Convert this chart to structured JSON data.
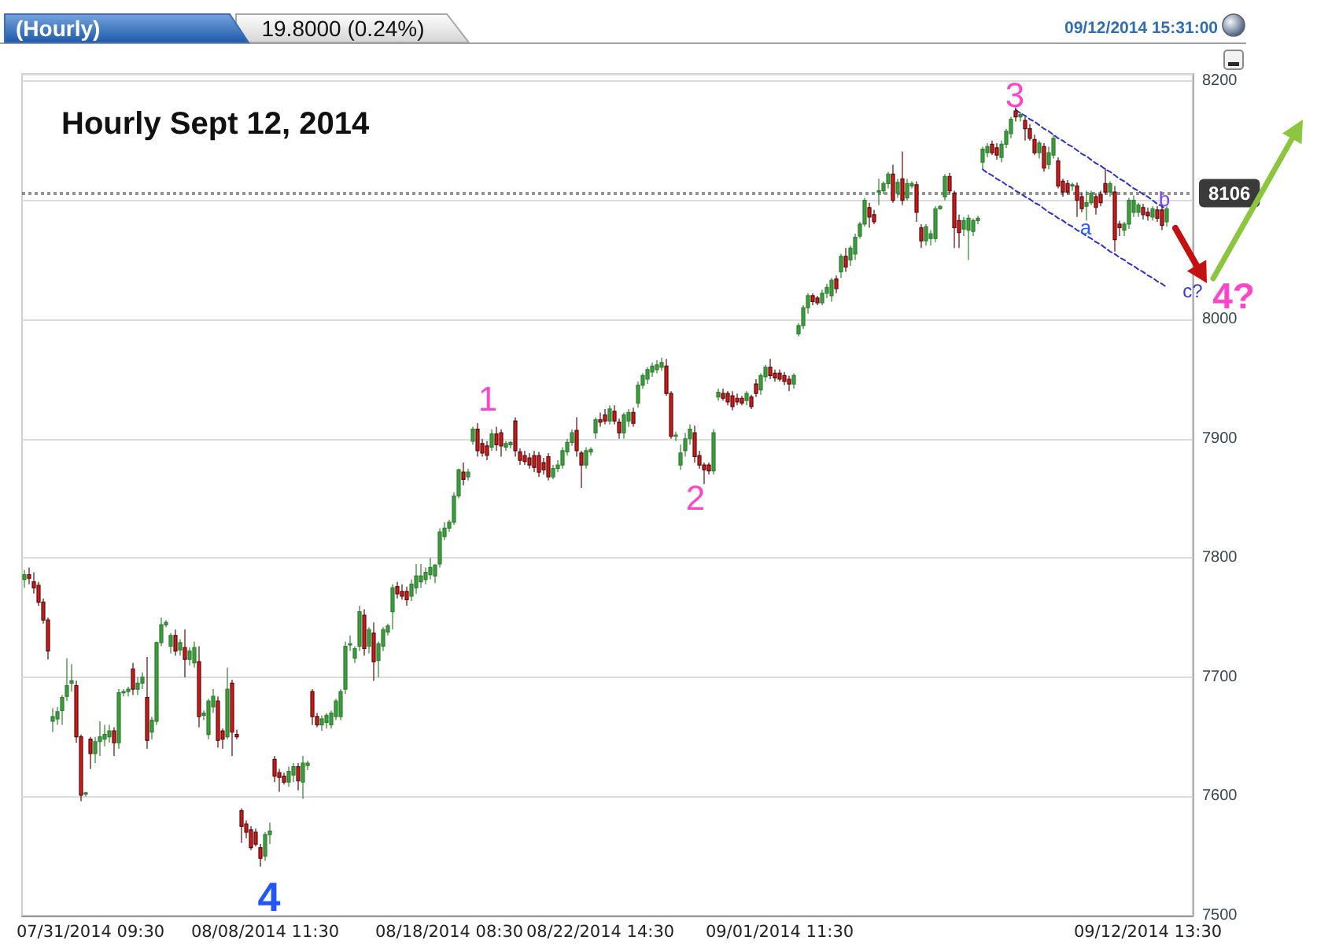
{
  "chart_data": {
    "type": "candlestick",
    "title": "Hourly Sept 12, 2014",
    "categories": [
      null,
      null,
      null,
      null,
      null,
      null,
      null,
      null,
      null,
      null,
      null,
      null,
      null,
      null,
      "07/31/2014 09:30",
      null,
      null,
      null,
      null,
      null,
      null,
      null,
      null,
      null,
      null,
      null,
      null,
      null,
      null,
      null,
      null,
      null,
      null,
      null,
      null,
      null,
      null,
      null,
      null,
      null,
      null,
      null,
      null,
      null,
      null,
      null,
      null,
      null,
      null,
      null,
      null,
      "08/08/2014 11:30",
      null,
      null,
      null,
      null,
      null,
      null,
      null,
      null,
      null,
      null,
      null,
      null,
      null,
      null,
      null,
      null,
      null,
      null,
      null,
      null,
      null,
      null,
      null,
      null,
      null,
      null,
      null,
      null,
      null,
      null,
      null,
      null,
      null,
      null,
      null,
      null,
      null,
      null,
      "08/18/2014 08:30",
      null,
      null,
      null,
      null,
      null,
      null,
      null,
      null,
      null,
      null,
      null,
      null,
      null,
      null,
      null,
      null,
      null,
      null,
      null,
      null,
      null,
      null,
      null,
      null,
      null,
      null,
      null,
      null,
      null,
      null,
      null,
      "08/22/2014 14:30",
      null,
      null,
      null,
      null,
      null,
      null,
      null,
      null,
      null,
      null,
      null,
      null,
      null,
      null,
      null,
      null,
      null,
      null,
      null,
      null,
      null,
      null,
      null,
      null,
      null,
      null,
      null,
      null,
      null,
      null,
      null,
      null,
      null,
      null,
      null,
      null,
      null,
      "09/01/2014 11:30",
      null,
      null,
      null,
      null,
      null,
      null,
      null,
      null,
      null,
      null,
      null,
      null,
      null,
      null,
      null,
      null,
      null,
      null,
      null,
      null,
      null,
      null,
      null,
      null,
      null,
      null,
      null,
      null,
      null,
      null,
      null,
      null,
      null,
      null,
      null,
      null,
      null,
      null,
      null,
      null,
      null,
      null,
      null,
      null,
      null,
      null,
      null,
      null,
      null,
      null,
      null,
      null,
      null,
      null,
      null,
      null,
      null,
      null,
      null,
      null,
      null,
      null,
      null,
      null,
      null,
      null,
      null,
      null,
      null,
      null,
      null,
      null,
      null,
      null,
      null,
      null,
      null,
      "09/12/2014 13:30",
      null,
      null,
      null,
      null
    ],
    "ohlc": [
      [
        7782,
        7790,
        7775,
        7786
      ],
      [
        7786,
        7792,
        7778,
        7783
      ],
      [
        7780,
        7788,
        7770,
        7775
      ],
      [
        7777,
        7780,
        7760,
        7763
      ],
      [
        7763,
        7766,
        7745,
        7748
      ],
      [
        7748,
        7750,
        7715,
        7722
      ],
      [
        7663,
        7674,
        7654,
        7667
      ],
      [
        7665,
        7675,
        7660,
        7671
      ],
      [
        7672,
        7685,
        7660,
        7683
      ],
      [
        7684,
        7716,
        7680,
        7693
      ],
      [
        7695,
        7711,
        7688,
        7697
      ],
      [
        7693,
        7697,
        7645,
        7650
      ],
      [
        7650,
        7652,
        7596,
        7601
      ],
      [
        7602,
        7604,
        7600,
        7603
      ],
      [
        7648,
        7650,
        7623,
        7636
      ],
      [
        7636,
        7650,
        7628,
        7646
      ],
      [
        7646,
        7663,
        7634,
        7650
      ],
      [
        7648,
        7660,
        7642,
        7652
      ],
      [
        7650,
        7660,
        7645,
        7655
      ],
      [
        7655,
        7658,
        7634,
        7645
      ],
      [
        7645,
        7690,
        7640,
        7687
      ],
      [
        7687,
        7690,
        7684,
        7688
      ],
      [
        7688,
        7692,
        7684,
        7690
      ],
      [
        7707,
        7712,
        7685,
        7690
      ],
      [
        7690,
        7700,
        7685,
        7695
      ],
      [
        7695,
        7704,
        7690,
        7700
      ],
      [
        7683,
        7717,
        7640,
        7647
      ],
      [
        7654,
        7667,
        7648,
        7664
      ],
      [
        7663,
        7730,
        7660,
        7729
      ],
      [
        7729,
        7750,
        7726,
        7744
      ],
      [
        7744,
        7748,
        7742,
        7746
      ],
      [
        7726,
        7737,
        7720,
        7735
      ],
      [
        7735,
        7740,
        7718,
        7722
      ],
      [
        7723,
        7732,
        7718,
        7729
      ],
      [
        7725,
        7740,
        7700,
        7715
      ],
      [
        7715,
        7725,
        7710,
        7722
      ],
      [
        7712,
        7730,
        7708,
        7725
      ],
      [
        7713,
        7726,
        7658,
        7667
      ],
      [
        7668,
        7672,
        7664,
        7670
      ],
      [
        7652,
        7682,
        7648,
        7680
      ],
      [
        7675,
        7690,
        7670,
        7684
      ],
      [
        7680,
        7684,
        7641,
        7647
      ],
      [
        7655,
        7657,
        7640,
        7648
      ],
      [
        7650,
        7708,
        7648,
        7690
      ],
      [
        7695,
        7698,
        7634,
        7654
      ],
      [
        7652,
        7656,
        7648,
        7650
      ],
      [
        7588,
        7590,
        7561,
        7575
      ],
      [
        7577,
        7580,
        7565,
        7570
      ],
      [
        7572,
        7575,
        7555,
        7557
      ],
      [
        7570,
        7573,
        7558,
        7560
      ],
      [
        7557,
        7560,
        7541,
        7548
      ],
      [
        7550,
        7570,
        7546,
        7568
      ],
      [
        7568,
        7578,
        7560,
        7571
      ],
      [
        7631,
        7634,
        7612,
        7617
      ],
      [
        7620,
        7623,
        7604,
        7616
      ],
      [
        7617,
        7620,
        7610,
        7612
      ],
      [
        7612,
        7625,
        7608,
        7621
      ],
      [
        7618,
        7628,
        7612,
        7625
      ],
      [
        7625,
        7628,
        7605,
        7613
      ],
      [
        7612,
        7634,
        7598,
        7628
      ],
      [
        7626,
        7630,
        7622,
        7628
      ],
      [
        7688,
        7690,
        7660,
        7667
      ],
      [
        7667,
        7670,
        7658,
        7660
      ],
      [
        7660,
        7668,
        7655,
        7665
      ],
      [
        7662,
        7670,
        7657,
        7668
      ],
      [
        7660,
        7672,
        7657,
        7670
      ],
      [
        7667,
        7682,
        7664,
        7680
      ],
      [
        7667,
        7690,
        7664,
        7688
      ],
      [
        7690,
        7730,
        7686,
        7726
      ],
      [
        7727,
        7735,
        7722,
        7728
      ],
      [
        7716,
        7726,
        7712,
        7724
      ],
      [
        7726,
        7760,
        7722,
        7755
      ],
      [
        7752,
        7757,
        7718,
        7724
      ],
      [
        7726,
        7742,
        7720,
        7740
      ],
      [
        7737,
        7746,
        7697,
        7713
      ],
      [
        7714,
        7730,
        7700,
        7728
      ],
      [
        7726,
        7742,
        7722,
        7740
      ],
      [
        7738,
        7745,
        7735,
        7743
      ],
      [
        7755,
        7778,
        7740,
        7775
      ],
      [
        7776,
        7780,
        7766,
        7770
      ],
      [
        7772,
        7778,
        7765,
        7768
      ],
      [
        7772,
        7776,
        7760,
        7765
      ],
      [
        7768,
        7782,
        7764,
        7778
      ],
      [
        7775,
        7795,
        7770,
        7785
      ],
      [
        7780,
        7795,
        7775,
        7785
      ],
      [
        7782,
        7792,
        7778,
        7788
      ],
      [
        7786,
        7800,
        7782,
        7792
      ],
      [
        7785,
        7795,
        7779,
        7794
      ],
      [
        7795,
        7825,
        7792,
        7822
      ],
      [
        7818,
        7830,
        7815,
        7825
      ],
      [
        7825,
        7832,
        7822,
        7830
      ],
      [
        7830,
        7855,
        7828,
        7852
      ],
      [
        7852,
        7875,
        7850,
        7874
      ],
      [
        7872,
        7880,
        7861,
        7866
      ],
      [
        7868,
        7875,
        7865,
        7872
      ],
      [
        7898,
        7910,
        7895,
        7908
      ],
      [
        7908,
        7913,
        7885,
        7890
      ],
      [
        7896,
        7900,
        7885,
        7888
      ],
      [
        7894,
        7898,
        7882,
        7886
      ],
      [
        7893,
        7908,
        7890,
        7904
      ],
      [
        7904,
        7910,
        7890,
        7895
      ],
      [
        7905,
        7908,
        7885,
        7894
      ],
      [
        7893,
        7898,
        7890,
        7896
      ],
      [
        7895,
        7898,
        7892,
        7897
      ],
      [
        7915,
        7918,
        7885,
        7890
      ],
      [
        7889,
        7892,
        7878,
        7882
      ],
      [
        7886,
        7890,
        7878,
        7881
      ],
      [
        7884,
        7888,
        7875,
        7878
      ],
      [
        7886,
        7890,
        7872,
        7876
      ],
      [
        7886,
        7889,
        7868,
        7872
      ],
      [
        7880,
        7884,
        7870,
        7874
      ],
      [
        7885,
        7888,
        7865,
        7868
      ],
      [
        7868,
        7878,
        7866,
        7875
      ],
      [
        7875,
        7882,
        7872,
        7878
      ],
      [
        7878,
        7893,
        7875,
        7890
      ],
      [
        7889,
        7900,
        7886,
        7897
      ],
      [
        7897,
        7908,
        7894,
        7905
      ],
      [
        7907,
        7918,
        7885,
        7890
      ],
      [
        7888,
        7890,
        7859,
        7878
      ],
      [
        7878,
        7893,
        7875,
        7890
      ],
      [
        7889,
        7893,
        7886,
        7891
      ],
      [
        7905,
        7918,
        7900,
        7916
      ],
      [
        7916,
        7922,
        7910,
        7914
      ],
      [
        7920,
        7925,
        7912,
        7915
      ],
      [
        7915,
        7928,
        7912,
        7925
      ],
      [
        7923,
        7928,
        7912,
        7915
      ],
      [
        7914,
        7917,
        7900,
        7905
      ],
      [
        7905,
        7922,
        7900,
        7920
      ],
      [
        7915,
        7925,
        7910,
        7922
      ],
      [
        7922,
        7926,
        7910,
        7913
      ],
      [
        7930,
        7948,
        7926,
        7945
      ],
      [
        7945,
        7955,
        7942,
        7953
      ],
      [
        7950,
        7960,
        7946,
        7958
      ],
      [
        7956,
        7964,
        7952,
        7961
      ],
      [
        7958,
        7966,
        7955,
        7962
      ],
      [
        7960,
        7968,
        7957,
        7964
      ],
      [
        7961,
        7967,
        7936,
        7938
      ],
      [
        7938,
        7940,
        7900,
        7902
      ],
      [
        7902,
        7906,
        7898,
        7903
      ],
      [
        7878,
        7895,
        7874,
        7888
      ],
      [
        7890,
        7905,
        7885,
        7900
      ],
      [
        7900,
        7912,
        7895,
        7908
      ],
      [
        7905,
        7911,
        7880,
        7885
      ],
      [
        7886,
        7890,
        7875,
        7878
      ],
      [
        7878,
        7880,
        7862,
        7874
      ],
      [
        7878,
        7880,
        7870,
        7873
      ],
      [
        7873,
        7908,
        7870,
        7905
      ],
      [
        7935,
        7942,
        7932,
        7939
      ],
      [
        7938,
        7942,
        7932,
        7934
      ],
      [
        7938,
        7940,
        7928,
        7931
      ],
      [
        7936,
        7940,
        7924,
        7927
      ],
      [
        7934,
        7938,
        7928,
        7931
      ],
      [
        7934,
        7936,
        7928,
        7930
      ],
      [
        7932,
        7940,
        7928,
        7938
      ],
      [
        7935,
        7937,
        7925,
        7927
      ],
      [
        7946,
        7950,
        7935,
        7938
      ],
      [
        7941,
        7955,
        7937,
        7953
      ],
      [
        7952,
        7962,
        7948,
        7960
      ],
      [
        7960,
        7967,
        7950,
        7953
      ],
      [
        7955,
        7958,
        7948,
        7951
      ],
      [
        7955,
        7958,
        7948,
        7950
      ],
      [
        7953,
        7956,
        7945,
        7948
      ],
      [
        7950,
        7953,
        7940,
        7946
      ],
      [
        7946,
        7955,
        7942,
        7953
      ],
      [
        7988,
        7997,
        7986,
        7995
      ],
      [
        7995,
        8012,
        7992,
        8010
      ],
      [
        8010,
        8022,
        8005,
        8020
      ],
      [
        8020,
        8022,
        8012,
        8015
      ],
      [
        8018,
        8020,
        8012,
        8014
      ],
      [
        8014,
        8025,
        8012,
        8022
      ],
      [
        8022,
        8030,
        8018,
        8027
      ],
      [
        8020,
        8035,
        8015,
        8033
      ],
      [
        8034,
        8037,
        8022,
        8026
      ],
      [
        8040,
        8055,
        8035,
        8053
      ],
      [
        8053,
        8060,
        8040,
        8044
      ],
      [
        8050,
        8062,
        8045,
        8060
      ],
      [
        8055,
        8072,
        8050,
        8069
      ],
      [
        8070,
        8082,
        8068,
        8080
      ],
      [
        8080,
        8102,
        8078,
        8100
      ],
      [
        8094,
        8098,
        8077,
        8086
      ],
      [
        8088,
        8092,
        8080,
        8082
      ],
      [
        8107,
        8118,
        8096,
        8108
      ],
      [
        8108,
        8116,
        8105,
        8114
      ],
      [
        8114,
        8124,
        8110,
        8122
      ],
      [
        8122,
        8130,
        8098,
        8100
      ],
      [
        8106,
        8118,
        8102,
        8115
      ],
      [
        8118,
        8141,
        8096,
        8100
      ],
      [
        8102,
        8118,
        8100,
        8114
      ],
      [
        8112,
        8116,
        8110,
        8114
      ],
      [
        8113,
        8116,
        8082,
        8090
      ],
      [
        8077,
        8080,
        8060,
        8066
      ],
      [
        8066,
        8080,
        8062,
        8078
      ],
      [
        8068,
        8075,
        8062,
        8072
      ],
      [
        8068,
        8095,
        8065,
        8093
      ],
      [
        8093,
        8096,
        8092,
        8095
      ],
      [
        8103,
        8122,
        8100,
        8120
      ],
      [
        8120,
        8123,
        8106,
        8108
      ],
      [
        8106,
        8108,
        8060,
        8077
      ],
      [
        8083,
        8088,
        8060,
        8073
      ],
      [
        8076,
        8086,
        8070,
        8083
      ],
      [
        8075,
        8088,
        8050,
        8085
      ],
      [
        8074,
        8085,
        8070,
        8083
      ],
      [
        8083,
        8087,
        8080,
        8085
      ],
      [
        8132,
        8145,
        8126,
        8143
      ],
      [
        8140,
        8148,
        8136,
        8145
      ],
      [
        8147,
        8150,
        8138,
        8140
      ],
      [
        8144,
        8148,
        8134,
        8138
      ],
      [
        8136,
        8150,
        8132,
        8147
      ],
      [
        8147,
        8160,
        8144,
        8158
      ],
      [
        8156,
        8170,
        8152,
        8168
      ],
      [
        8175,
        8178,
        8166,
        8170
      ],
      [
        8170,
        8174,
        8166,
        8172
      ],
      [
        8167,
        8170,
        8150,
        8160
      ],
      [
        8160,
        8164,
        8150,
        8152
      ],
      [
        8151,
        8155,
        8138,
        8140
      ],
      [
        8140,
        8150,
        8135,
        8148
      ],
      [
        8145,
        8148,
        8124,
        8127
      ],
      [
        8130,
        8145,
        8126,
        8140
      ],
      [
        8138,
        8155,
        8135,
        8152
      ],
      [
        8133,
        8136,
        8110,
        8112
      ],
      [
        8116,
        8118,
        8103,
        8107
      ],
      [
        8114,
        8117,
        8105,
        8107
      ],
      [
        8112,
        8115,
        8108,
        8113
      ],
      [
        8112,
        8115,
        8086,
        8100
      ],
      [
        8103,
        8106,
        8090,
        8093
      ],
      [
        8095,
        8108,
        8083,
        8098
      ],
      [
        8098,
        8108,
        8096,
        8106
      ],
      [
        8103,
        8106,
        8088,
        8094
      ],
      [
        8105,
        8108,
        8095,
        8098
      ],
      [
        8114,
        8127,
        8105,
        8107
      ],
      [
        8107,
        8116,
        8103,
        8114
      ],
      [
        8107,
        8112,
        8057,
        8067
      ],
      [
        8080,
        8083,
        8070,
        8077
      ],
      [
        8075,
        8082,
        8070,
        8080
      ],
      [
        8080,
        8102,
        8076,
        8100
      ],
      [
        8090,
        8104,
        8086,
        8100
      ],
      [
        8090,
        8098,
        8086,
        8096
      ],
      [
        8094,
        8097,
        8084,
        8088
      ],
      [
        8090,
        8094,
        8083,
        8087
      ],
      [
        8086,
        8095,
        8083,
        8093
      ],
      [
        8092,
        8095,
        8082,
        8085
      ],
      [
        8092,
        8096,
        8075,
        8079
      ],
      [
        8082,
        8095,
        8078,
        8093
      ]
    ],
    "series": [
      {
        "type": "line",
        "color": "#2f2fd0",
        "line_style": "dashed",
        "values": [
          null,
          null,
          null,
          null,
          null,
          null,
          null,
          null,
          null,
          null,
          null,
          null,
          null,
          null,
          null,
          null,
          null,
          null,
          null,
          null,
          null,
          null,
          null,
          null,
          null,
          null,
          null,
          null,
          null,
          null,
          null,
          null,
          null,
          null,
          null,
          null,
          null,
          null,
          null,
          null,
          null,
          null,
          null,
          null,
          null,
          null,
          null,
          null,
          null,
          null,
          null,
          null,
          null,
          null,
          null,
          null,
          null,
          null,
          null,
          null,
          null,
          null,
          null,
          null,
          null,
          null,
          null,
          null,
          null,
          null,
          null,
          null,
          null,
          null,
          null,
          null,
          null,
          null,
          null,
          null,
          null,
          null,
          null,
          null,
          null,
          null,
          null,
          null,
          null,
          null,
          null,
          null,
          null,
          null,
          null,
          null,
          null,
          null,
          null,
          null,
          null,
          null,
          null,
          null,
          null,
          null,
          null,
          null,
          null,
          null,
          null,
          null,
          null,
          null,
          null,
          null,
          null,
          null,
          null,
          null,
          null,
          null,
          null,
          null,
          null,
          null,
          null,
          null,
          null,
          null,
          null,
          null,
          null,
          null,
          null,
          null,
          null,
          null,
          null,
          null,
          null,
          null,
          null,
          null,
          null,
          null,
          null,
          null,
          null,
          null,
          null,
          null,
          null,
          null,
          null,
          null,
          null,
          null,
          null,
          null,
          null,
          null,
          null,
          null,
          null,
          null,
          null,
          null,
          null,
          null,
          null,
          null,
          null,
          null,
          null,
          null,
          null,
          null,
          null,
          null,
          null,
          null,
          null,
          null,
          null,
          null,
          null,
          null,
          null,
          null,
          null,
          null,
          null,
          null,
          null,
          null,
          null,
          null,
          null,
          null,
          null,
          null,
          null,
          null,
          null,
          null,
          null,
          null,
          null,
          null,
          8176,
          8173,
          8171,
          8168,
          8166,
          8163,
          8160,
          8158,
          8155,
          8152,
          8150,
          8147,
          8145,
          8142,
          8139,
          8137,
          8134,
          8131,
          8129,
          8126,
          8124,
          8121,
          8118,
          8116,
          8113,
          8110,
          8108,
          8105,
          8103,
          8100,
          8097,
          8095,
          8092
        ]
      },
      {
        "type": "line",
        "color": "#2f2fd0",
        "line_style": "dashed",
        "values": [
          null,
          null,
          null,
          null,
          null,
          null,
          null,
          null,
          null,
          null,
          null,
          null,
          null,
          null,
          null,
          null,
          null,
          null,
          null,
          null,
          null,
          null,
          null,
          null,
          null,
          null,
          null,
          null,
          null,
          null,
          null,
          null,
          null,
          null,
          null,
          null,
          null,
          null,
          null,
          null,
          null,
          null,
          null,
          null,
          null,
          null,
          null,
          null,
          null,
          null,
          null,
          null,
          null,
          null,
          null,
          null,
          null,
          null,
          null,
          null,
          null,
          null,
          null,
          null,
          null,
          null,
          null,
          null,
          null,
          null,
          null,
          null,
          null,
          null,
          null,
          null,
          null,
          null,
          null,
          null,
          null,
          null,
          null,
          null,
          null,
          null,
          null,
          null,
          null,
          null,
          null,
          null,
          null,
          null,
          null,
          null,
          null,
          null,
          null,
          null,
          null,
          null,
          null,
          null,
          null,
          null,
          null,
          null,
          null,
          null,
          null,
          null,
          null,
          null,
          null,
          null,
          null,
          null,
          null,
          null,
          null,
          null,
          null,
          null,
          null,
          null,
          null,
          null,
          null,
          null,
          null,
          null,
          null,
          null,
          null,
          null,
          null,
          null,
          null,
          null,
          null,
          null,
          null,
          null,
          null,
          null,
          null,
          null,
          null,
          null,
          null,
          null,
          null,
          null,
          null,
          null,
          null,
          null,
          null,
          null,
          null,
          null,
          null,
          null,
          null,
          null,
          null,
          null,
          null,
          null,
          null,
          null,
          null,
          null,
          null,
          null,
          null,
          null,
          null,
          null,
          null,
          null,
          null,
          null,
          null,
          null,
          null,
          null,
          null,
          null,
          null,
          null,
          null,
          null,
          null,
          null,
          null,
          null,
          null,
          null,
          null,
          null,
          null,
          8126,
          8123,
          8121,
          8118,
          8116,
          8113,
          8111,
          8108,
          8106,
          8103,
          8101,
          8098,
          8096,
          8093,
          8090,
          8088,
          8085,
          8083,
          8080,
          8078,
          8075,
          8073,
          8070,
          8068,
          8065,
          8063,
          8060,
          8057,
          8055,
          8052,
          8050,
          8047,
          8045,
          8042,
          8040,
          8037,
          8035,
          8032,
          8030,
          8027
        ]
      }
    ],
    "ylim": [
      7500,
      8206
    ],
    "yticks": [
      7500,
      7600,
      7700,
      7800,
      7900,
      8000,
      {
        "value": 8100,
        "label": null
      },
      8200
    ],
    "grid": "y",
    "marker": "none",
    "ref_lines": [
      {
        "axis": "y",
        "value": 8106,
        "label": "8106",
        "color": "#3a3a3a",
        "line_style": "dotted"
      }
    ],
    "annotations": [
      "(Hourly)",
      "19.8000 (0.24%)",
      "09/12/2014 15:31:00",
      "1",
      "2",
      "3",
      "4",
      "a",
      "b",
      "c?",
      "4?"
    ]
  }
}
